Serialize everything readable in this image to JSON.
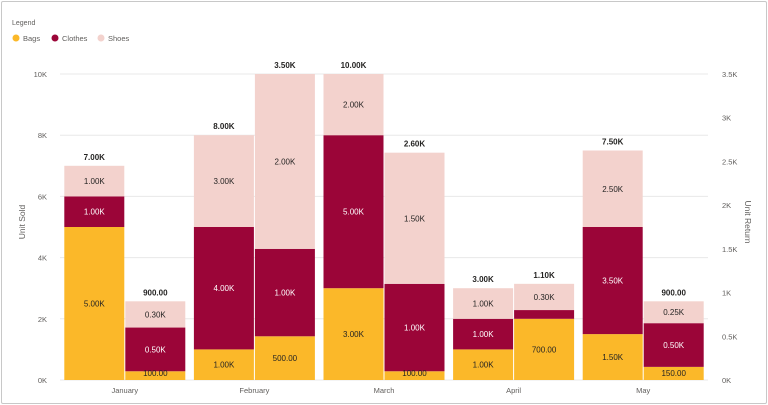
{
  "legend": {
    "title": "Legend",
    "items": [
      {
        "name": "Bags",
        "color": "#fbb829"
      },
      {
        "name": "Clothes",
        "color": "#9b0538"
      },
      {
        "name": "Shoes",
        "color": "#f3d2cd"
      }
    ]
  },
  "chart_data": {
    "type": "bar",
    "stacked": true,
    "categories": [
      "January",
      "February",
      "March",
      "April",
      "May"
    ],
    "series_order": [
      "Bags",
      "Clothes",
      "Shoes"
    ],
    "colors": {
      "Bags": "#fbb829",
      "Clothes": "#9b0538",
      "Shoes": "#f3d2cd"
    },
    "groups": [
      {
        "axis": "left",
        "ylabel": "Unit Sold",
        "ylim": [
          0,
          10000
        ],
        "ticks": [
          0,
          2000,
          4000,
          6000,
          8000,
          10000
        ],
        "tick_labels": [
          "0K",
          "2K",
          "4K",
          "6K",
          "8K",
          "10K"
        ],
        "series": [
          {
            "name": "Bags",
            "values": [
              5000,
              1000,
              3000,
              1000,
              1500
            ],
            "labels": [
              "5.00K",
              "1.00K",
              "3.00K",
              "1.00K",
              "1.50K"
            ]
          },
          {
            "name": "Clothes",
            "values": [
              1000,
              4000,
              5000,
              1000,
              3500
            ],
            "labels": [
              "1.00K",
              "4.00K",
              "5.00K",
              "1.00K",
              "3.50K"
            ]
          },
          {
            "name": "Shoes",
            "values": [
              1000,
              3000,
              2000,
              1000,
              2500
            ],
            "labels": [
              "1.00K",
              "3.00K",
              "2.00K",
              "1.00K",
              "2.50K"
            ]
          }
        ],
        "totals": [
          "7.00K",
          "8.00K",
          "10.00K",
          "3.00K",
          "7.50K"
        ]
      },
      {
        "axis": "right",
        "ylabel": "Unit Return",
        "ylim": [
          0,
          3500
        ],
        "ticks": [
          0,
          500,
          1000,
          1500,
          2000,
          2500,
          3000,
          3500
        ],
        "tick_labels": [
          "0K",
          "0.5K",
          "1K",
          "1.5K",
          "2K",
          "2.5K",
          "3K",
          "3.5K"
        ],
        "series": [
          {
            "name": "Bags",
            "values": [
              100,
              500,
              100,
              700,
              150
            ],
            "labels": [
              "100.00",
              "500.00",
              "100.00",
              "700.00",
              "150.00"
            ]
          },
          {
            "name": "Clothes",
            "values": [
              500,
              1000,
              1000,
              100,
              500
            ],
            "labels": [
              "0.50K",
              "1.00K",
              "1.00K",
              "",
              "0.50K"
            ]
          },
          {
            "name": "Shoes",
            "values": [
              300,
              2000,
              1500,
              300,
              250
            ],
            "labels": [
              "0.30K",
              "2.00K",
              "1.50K",
              "0.30K",
              "0.25K"
            ]
          }
        ],
        "totals": [
          "900.00",
          "3.50K",
          "2.60K",
          "1.10K",
          "900.00"
        ]
      }
    ],
    "grid": true,
    "legend_position": "top-left"
  }
}
